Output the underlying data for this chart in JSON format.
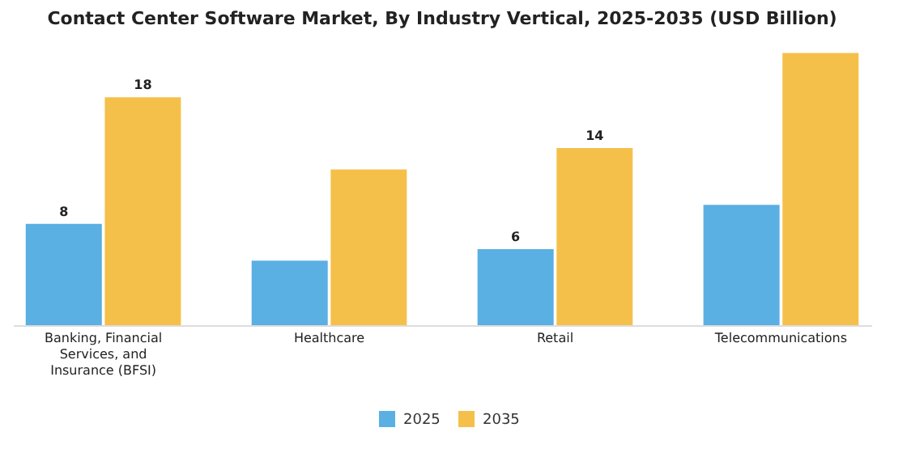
{
  "chart_data": {
    "type": "bar",
    "title": "Contact Center Software Market, By Industry Vertical, 2025-2035 (USD Billion)",
    "categories": [
      "Banking, Financial Services, and Insurance (BFSI)",
      "Healthcare",
      "Retail",
      "Telecommunications"
    ],
    "series": [
      {
        "name": "2025",
        "color": "#5aafe3",
        "values": [
          8,
          5.1,
          6,
          9.5
        ],
        "value_labels": [
          "8",
          null,
          "6",
          null
        ]
      },
      {
        "name": "2035",
        "color": "#f5c04a",
        "values": [
          18,
          12.3,
          14,
          21.5
        ],
        "value_labels": [
          "18",
          null,
          "14",
          null
        ]
      }
    ],
    "legend": "bottom",
    "grid": false
  }
}
